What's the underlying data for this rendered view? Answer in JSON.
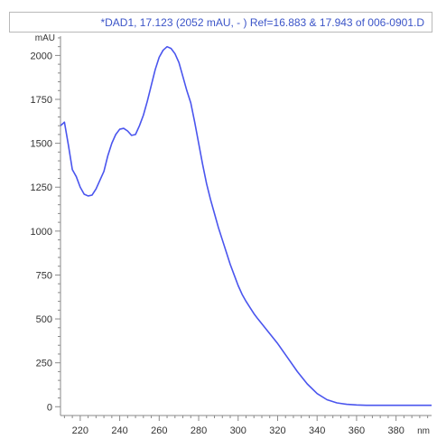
{
  "window": {
    "title": "*DAD1, 17.123 (2052 mAU, - ) Ref=16.883 & 17.943 of 006-0901.D"
  },
  "colors": {
    "trace": "#4a55ee",
    "title": "#3c55c8",
    "axis": "#8a8a8a",
    "frame": "#b9b9b9"
  },
  "chart_data": {
    "type": "line",
    "title": "*DAD1, 17.123 (2052 mAU, - ) Ref=16.883 & 17.943 of 006-0901.D",
    "xlabel": "nm",
    "ylabel": "mAU",
    "xlim": [
      210,
      398
    ],
    "ylim": [
      -50,
      2110
    ],
    "xticks": [
      220,
      240,
      260,
      280,
      300,
      320,
      340,
      360,
      380
    ],
    "yticks": [
      0,
      250,
      500,
      750,
      1000,
      1250,
      1500,
      1750,
      2000
    ],
    "grid": false,
    "series": [
      {
        "x": [
          210,
          212,
          214,
          216,
          218,
          220,
          222,
          224,
          226,
          228,
          230,
          232,
          234,
          236,
          238,
          240,
          242,
          244,
          246,
          248,
          250,
          252,
          254,
          256,
          258,
          260,
          262,
          264,
          266,
          268,
          270,
          272,
          274,
          276,
          278,
          280,
          282,
          284,
          286,
          288,
          290,
          292,
          294,
          296,
          298,
          300,
          302,
          304,
          306,
          308,
          310,
          315,
          320,
          325,
          330,
          335,
          340,
          345,
          350,
          355,
          360,
          365,
          370,
          375,
          380,
          385,
          390,
          395,
          398
        ],
        "y": [
          1600,
          1620,
          1490,
          1350,
          1310,
          1250,
          1210,
          1200,
          1205,
          1240,
          1290,
          1340,
          1430,
          1500,
          1550,
          1580,
          1585,
          1570,
          1545,
          1550,
          1600,
          1660,
          1740,
          1830,
          1920,
          1990,
          2030,
          2050,
          2040,
          2010,
          1960,
          1880,
          1800,
          1730,
          1620,
          1500,
          1380,
          1270,
          1180,
          1100,
          1020,
          950,
          880,
          810,
          750,
          690,
          640,
          600,
          565,
          530,
          500,
          430,
          360,
          280,
          200,
          130,
          75,
          40,
          22,
          14,
          10,
          8,
          8,
          8,
          8,
          8,
          8,
          8,
          8
        ]
      }
    ]
  }
}
